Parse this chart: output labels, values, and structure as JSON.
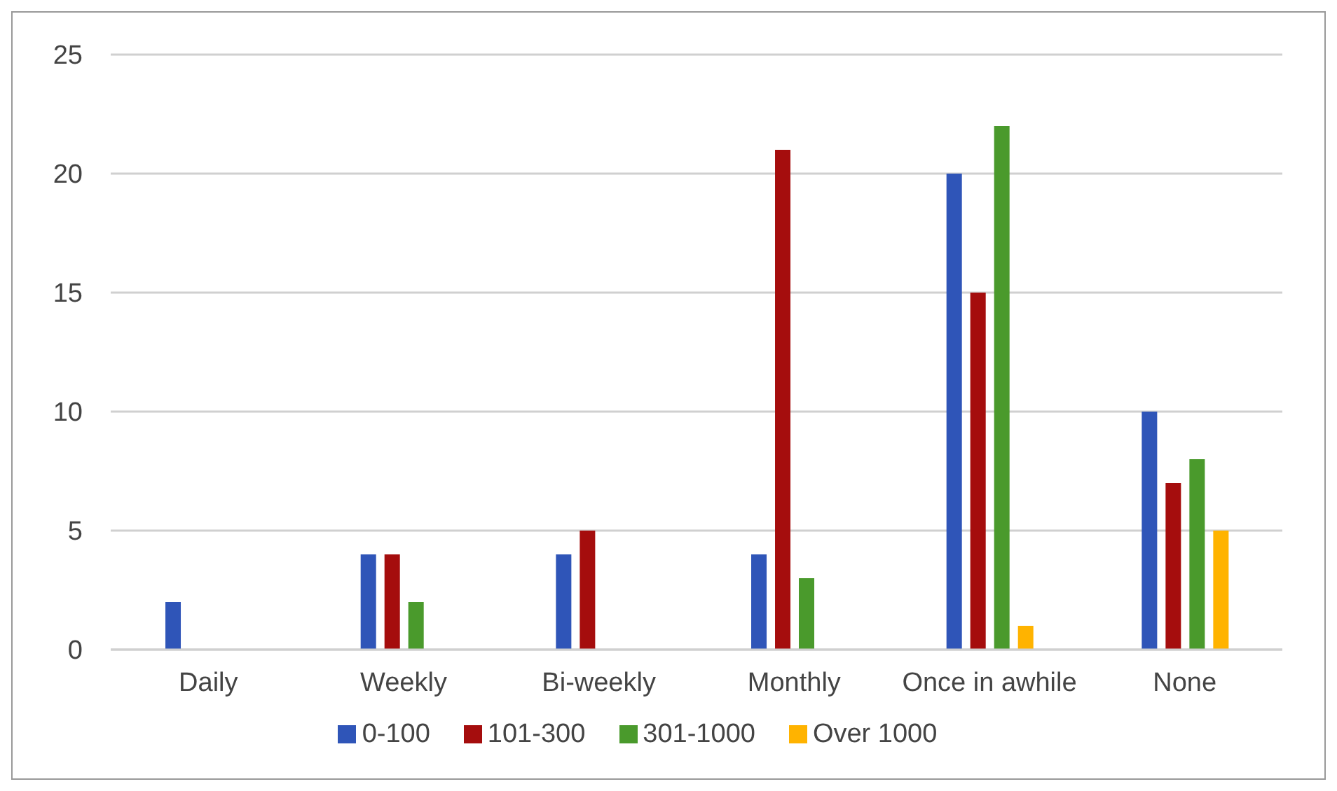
{
  "chart_data": {
    "type": "bar",
    "categories": [
      "Daily",
      "Weekly",
      "Bi-weekly",
      "Monthly",
      "Once in awhile",
      "None"
    ],
    "series": [
      {
        "name": "0-100",
        "color": "#2f55b8",
        "values": [
          2,
          4,
          4,
          4,
          20,
          10
        ]
      },
      {
        "name": "101-300",
        "color": "#a50d0d",
        "values": [
          0,
          4,
          5,
          21,
          15,
          7
        ]
      },
      {
        "name": "301-1000",
        "color": "#4a9a2c",
        "values": [
          0,
          2,
          0,
          3,
          22,
          8
        ]
      },
      {
        "name": "Over 1000",
        "color": "#ffb300",
        "values": [
          0,
          0,
          0,
          0,
          1,
          5
        ]
      }
    ],
    "ylim": [
      0,
      25
    ],
    "yticks": [
      0,
      5,
      10,
      15,
      20,
      25
    ],
    "grid": "y",
    "legend": "bottom"
  }
}
